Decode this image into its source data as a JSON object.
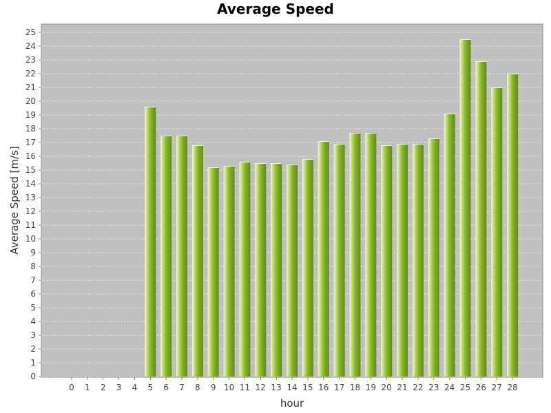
{
  "chart_data": {
    "type": "bar",
    "title": "Average Speed",
    "xlabel": "hour",
    "ylabel": "Average Speed [m/s]",
    "ylim": [
      0,
      25.5
    ],
    "grid": true,
    "categories": [
      "0",
      "1",
      "2",
      "3",
      "4",
      "5",
      "6",
      "7",
      "8",
      "9",
      "10",
      "11",
      "12",
      "13",
      "14",
      "15",
      "16",
      "17",
      "18",
      "19",
      "20",
      "21",
      "22",
      "23",
      "24",
      "25",
      "26",
      "27",
      "28"
    ],
    "values": [
      0,
      0,
      0,
      0,
      0,
      19.6,
      17.5,
      17.5,
      16.8,
      15.2,
      15.3,
      15.6,
      15.5,
      15.5,
      15.4,
      15.8,
      17.1,
      16.9,
      17.7,
      17.7,
      16.8,
      16.9,
      16.9,
      17.3,
      19.1,
      24.5,
      22.9,
      21.0,
      22.0
    ],
    "yticks": [
      0,
      1,
      2,
      3,
      4,
      5,
      6,
      7,
      8,
      9,
      10,
      11,
      12,
      13,
      14,
      15,
      16,
      17,
      18,
      19,
      20,
      21,
      22,
      23,
      24,
      25
    ],
    "colors": {
      "plot_background": "#c0c0c0",
      "bar": "#8ab72a",
      "bar_light": "#c4e07a",
      "bar_dark": "#5e8a12",
      "grid": "#ffffff"
    }
  }
}
